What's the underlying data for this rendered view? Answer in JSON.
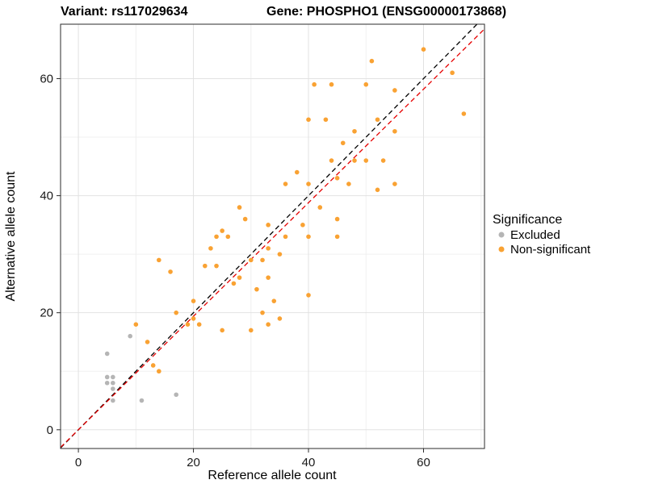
{
  "titles": {
    "left": "Variant: rs117029634",
    "right": "Gene: PHOSPHO1 (ENSG00000173868)"
  },
  "axes": {
    "x_label": "Reference allele count",
    "y_label": "Alternative allele count"
  },
  "legend": {
    "title": "Significance",
    "items": [
      {
        "label": "Excluded",
        "color": "#b5b5b5"
      },
      {
        "label": "Non-significant",
        "color": "#f9a233"
      }
    ]
  },
  "chart_data": {
    "type": "scatter",
    "title_left": "Variant: rs117029634",
    "title_right": "Gene: PHOSPHO1 (ENSG00000173868)",
    "xlabel": "Reference allele count",
    "ylabel": "Alternative allele count",
    "xlim": [
      -3.1,
      70.6
    ],
    "ylim": [
      -3.2,
      69.3
    ],
    "x_major_ticks": [
      0,
      20,
      40,
      60
    ],
    "x_minor_ticks": [
      10,
      30,
      50,
      70
    ],
    "y_major_ticks": [
      0,
      20,
      40,
      60
    ],
    "y_minor_ticks": [
      10,
      30,
      50
    ],
    "grid": true,
    "legend_position": "right",
    "series": [
      {
        "name": "Excluded",
        "color": "#b5b5b5",
        "points": [
          [
            5,
            13
          ],
          [
            5,
            9
          ],
          [
            6,
            9
          ],
          [
            5,
            8
          ],
          [
            6,
            8
          ],
          [
            6,
            7
          ],
          [
            6,
            5
          ],
          [
            9,
            16
          ],
          [
            11,
            5
          ],
          [
            17,
            6
          ]
        ]
      },
      {
        "name": "Non-significant",
        "color": "#f9a233",
        "points": [
          [
            10,
            18
          ],
          [
            12,
            15
          ],
          [
            13,
            11
          ],
          [
            14,
            10
          ],
          [
            14,
            29
          ],
          [
            16,
            27
          ],
          [
            17,
            20
          ],
          [
            19,
            18
          ],
          [
            20,
            19
          ],
          [
            20,
            22
          ],
          [
            21,
            18
          ],
          [
            22,
            28
          ],
          [
            23,
            31
          ],
          [
            24,
            33
          ],
          [
            24,
            28
          ],
          [
            25,
            34
          ],
          [
            25,
            17
          ],
          [
            26,
            33
          ],
          [
            27,
            25
          ],
          [
            28,
            38
          ],
          [
            28,
            26
          ],
          [
            29,
            36
          ],
          [
            30,
            29
          ],
          [
            30,
            17
          ],
          [
            31,
            24
          ],
          [
            32,
            20
          ],
          [
            32,
            29
          ],
          [
            33,
            35
          ],
          [
            33,
            31
          ],
          [
            33,
            26
          ],
          [
            33,
            18
          ],
          [
            34,
            22
          ],
          [
            35,
            30
          ],
          [
            35,
            19
          ],
          [
            36,
            42
          ],
          [
            36,
            33
          ],
          [
            38,
            44
          ],
          [
            39,
            35
          ],
          [
            40,
            53
          ],
          [
            40,
            42
          ],
          [
            40,
            33
          ],
          [
            40,
            23
          ],
          [
            41,
            59
          ],
          [
            42,
            38
          ],
          [
            43,
            53
          ],
          [
            44,
            59
          ],
          [
            44,
            46
          ],
          [
            45,
            43
          ],
          [
            45,
            36
          ],
          [
            45,
            33
          ],
          [
            46,
            49
          ],
          [
            47,
            42
          ],
          [
            48,
            51
          ],
          [
            48,
            46
          ],
          [
            50,
            59
          ],
          [
            50,
            46
          ],
          [
            51,
            63
          ],
          [
            52,
            53
          ],
          [
            52,
            41
          ],
          [
            53,
            46
          ],
          [
            55,
            58
          ],
          [
            55,
            51
          ],
          [
            55,
            42
          ],
          [
            60,
            65
          ],
          [
            65,
            61
          ],
          [
            67,
            54
          ]
        ]
      }
    ],
    "lines": [
      {
        "name": "identity-line",
        "style": "dashed",
        "color": "#000000",
        "slope": 1.0,
        "intercept": 0
      },
      {
        "name": "fit-line",
        "style": "dashed",
        "color": "#e60000",
        "slope": 0.97,
        "intercept": 0
      }
    ]
  }
}
